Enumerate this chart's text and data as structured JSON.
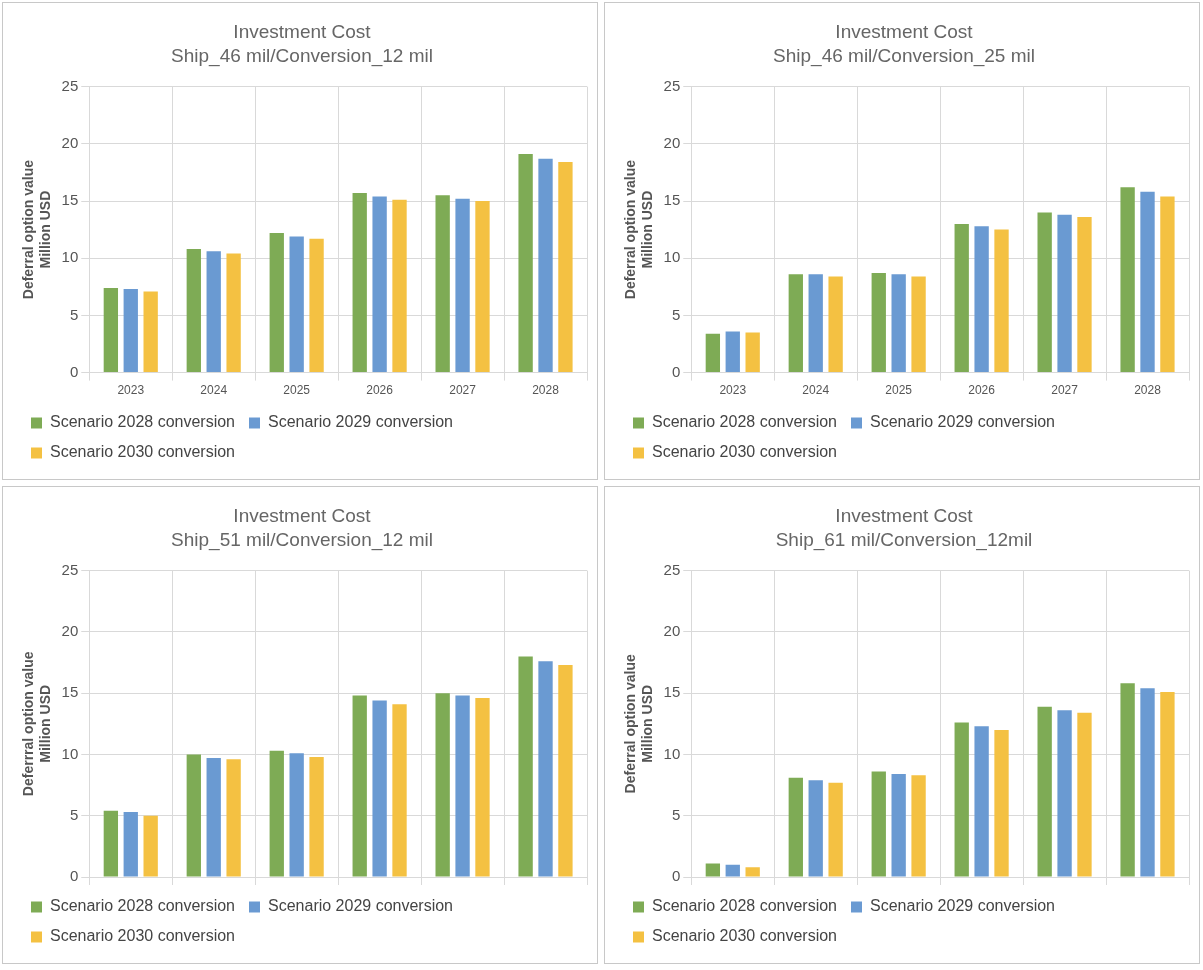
{
  "chart_data": [
    {
      "type": "bar",
      "title": "Investment Cost",
      "subtitle": "Ship_46 mil/Conversion_12 mil",
      "ylabel": "Deferral option value\nMillion USD",
      "categories": [
        "2023",
        "2024",
        "2025",
        "2026",
        "2027",
        "2028"
      ],
      "ylim": [
        0,
        25
      ],
      "yticks": [
        0,
        5,
        10,
        15,
        20,
        25
      ],
      "grid": true,
      "legend": "bottom",
      "series": [
        {
          "name": "Scenario 2028 conversion",
          "color": "#7eab55",
          "values": [
            7.4,
            10.8,
            12.2,
            15.7,
            15.5,
            19.1
          ]
        },
        {
          "name": "Scenario 2029 conversion",
          "color": "#6a9ad2",
          "values": [
            7.3,
            10.6,
            11.9,
            15.4,
            15.2,
            18.7
          ]
        },
        {
          "name": "Scenario 2030 conversion",
          "color": "#f4c142",
          "values": [
            7.1,
            10.4,
            11.7,
            15.1,
            15.0,
            18.4
          ]
        }
      ]
    },
    {
      "type": "bar",
      "title": "Investment Cost",
      "subtitle": "Ship_46 mil/Conversion_25 mil",
      "ylabel": "Deferral option value\nMillion USD",
      "categories": [
        "2023",
        "2024",
        "2025",
        "2026",
        "2027",
        "2028"
      ],
      "ylim": [
        0,
        25
      ],
      "yticks": [
        0,
        5,
        10,
        15,
        20,
        25
      ],
      "grid": true,
      "legend": "bottom",
      "series": [
        {
          "name": "Scenario 2028 conversion",
          "color": "#7eab55",
          "values": [
            3.4,
            8.6,
            8.7,
            13.0,
            14.0,
            16.2
          ]
        },
        {
          "name": "Scenario 2029 conversion",
          "color": "#6a9ad2",
          "values": [
            3.6,
            8.6,
            8.6,
            12.8,
            13.8,
            15.8
          ]
        },
        {
          "name": "Scenario 2030 conversion",
          "color": "#f4c142",
          "values": [
            3.5,
            8.4,
            8.4,
            12.5,
            13.6,
            15.4
          ]
        }
      ]
    },
    {
      "type": "bar",
      "title": "Investment Cost",
      "subtitle": "Ship_51 mil/Conversion_12 mil",
      "ylabel": "Deferrral option value\nMillion USD",
      "categories": [
        null,
        null,
        null,
        null,
        null,
        null
      ],
      "tick_labels": "y",
      "ylim": [
        0,
        25
      ],
      "yticks": [
        0,
        5,
        10,
        15,
        20,
        25
      ],
      "grid": true,
      "legend": "bottom",
      "series": [
        {
          "name": "Scenario 2028 conversion",
          "color": "#7eab55",
          "values": [
            5.4,
            10.0,
            10.3,
            14.8,
            15.0,
            18.0
          ]
        },
        {
          "name": "Scenario 2029 conversion",
          "color": "#6a9ad2",
          "values": [
            5.3,
            9.7,
            10.1,
            14.4,
            14.8,
            17.6
          ]
        },
        {
          "name": "Scenario 2030 conversion",
          "color": "#f4c142",
          "values": [
            5.0,
            9.6,
            9.8,
            14.1,
            14.6,
            17.3
          ]
        }
      ]
    },
    {
      "type": "bar",
      "title": "Investment Cost",
      "subtitle": "Ship_61 mil/Conversion_12mil",
      "ylabel": "Deferral option value\nMillion USD",
      "categories": [
        null,
        null,
        null,
        null,
        null,
        null
      ],
      "tick_labels": "y",
      "ylim": [
        0,
        25
      ],
      "yticks": [
        0,
        5,
        10,
        15,
        20,
        25
      ],
      "grid": true,
      "legend": "bottom",
      "series": [
        {
          "name": "Scenario 2028 conversion",
          "color": "#7eab55",
          "values": [
            1.1,
            8.1,
            8.6,
            12.6,
            13.9,
            15.8
          ]
        },
        {
          "name": "Scenario 2029 conversion",
          "color": "#6a9ad2",
          "values": [
            1.0,
            7.9,
            8.4,
            12.3,
            13.6,
            15.4
          ]
        },
        {
          "name": "Scenario 2030 conversion",
          "color": "#f4c142",
          "values": [
            0.8,
            7.7,
            8.3,
            12.0,
            13.4,
            15.1
          ]
        }
      ]
    }
  ]
}
